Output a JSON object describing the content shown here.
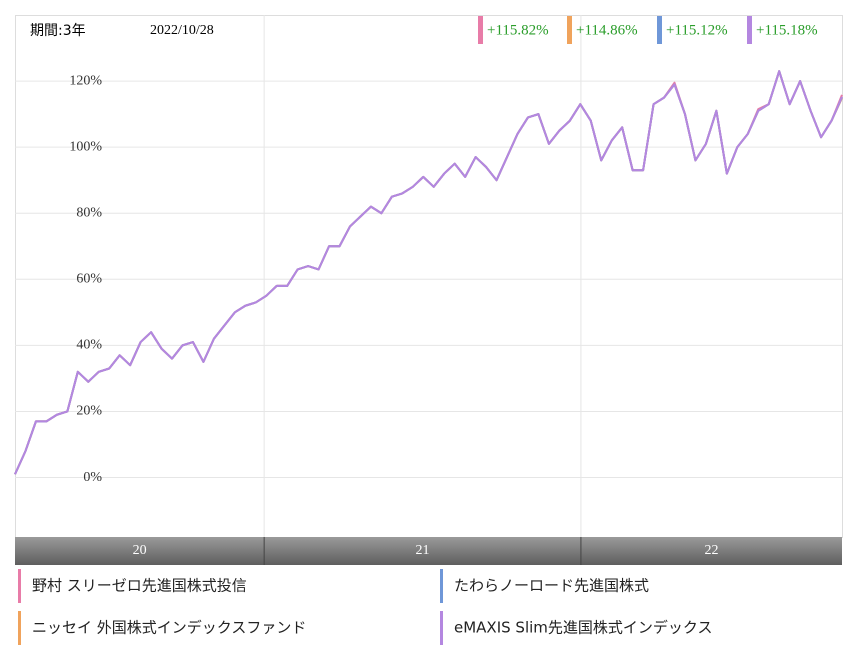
{
  "chart_data": {
    "type": "line",
    "period_label": "期間:3年",
    "date": "2022/10/28",
    "xlim": [
      0,
      79
    ],
    "year_bands": [
      {
        "label": "20",
        "start": 0,
        "end": 23.8
      },
      {
        "label": "21",
        "start": 23.8,
        "end": 54.06
      },
      {
        "label": "22",
        "start": 54.06,
        "end": 79
      }
    ],
    "ylim": [
      -18,
      140
    ],
    "yticks": [
      {
        "value": 0,
        "label": "0%"
      },
      {
        "value": 20,
        "label": "20%"
      },
      {
        "value": 40,
        "label": "40%"
      },
      {
        "value": 60,
        "label": "60%"
      },
      {
        "value": 80,
        "label": "80%"
      },
      {
        "value": 100,
        "label": "100%"
      },
      {
        "value": 120,
        "label": "120%"
      }
    ],
    "grid": true,
    "series": [
      {
        "name": "野村 スリーゼロ先進国株式投信",
        "color": "#e87ca8",
        "end_label": "+115.82%",
        "values": [
          1,
          8,
          17,
          17,
          19,
          20,
          32,
          29,
          32,
          33,
          37,
          34,
          41,
          44,
          39,
          36,
          40,
          41,
          35,
          42,
          46,
          50,
          52,
          53,
          55,
          58,
          58,
          63,
          64,
          63,
          70,
          70,
          76,
          79,
          82,
          80,
          85,
          86,
          88,
          91,
          88,
          92,
          95,
          91,
          97,
          94,
          90,
          97,
          104,
          109,
          110,
          101,
          105,
          108,
          113,
          108,
          96,
          102,
          106,
          93,
          93,
          113,
          115,
          119.5,
          110,
          96,
          101,
          111,
          92,
          100,
          104,
          111.5,
          113,
          123,
          113,
          120,
          111,
          103,
          108,
          115.82
        ]
      },
      {
        "name": "ニッセイ 外国株式インデックスファンド",
        "color": "#f0a35c",
        "end_label": "+114.86%",
        "values": [
          1,
          8,
          17,
          17,
          19,
          20,
          32,
          29,
          32,
          33,
          37,
          34,
          41,
          44,
          39,
          36,
          40,
          41,
          35,
          42,
          46,
          50,
          52,
          53,
          55,
          58,
          58,
          63,
          64,
          63,
          70,
          70,
          76,
          79,
          82,
          80,
          85,
          86,
          88,
          91,
          88,
          92,
          95,
          91,
          97,
          94,
          90,
          97,
          104,
          109,
          110,
          101,
          105,
          108,
          113,
          108,
          96,
          102,
          106,
          93,
          93,
          113,
          115,
          119,
          110,
          96,
          101,
          111,
          92,
          100,
          104,
          111,
          113,
          123,
          113,
          120,
          111,
          103,
          108,
          114.86
        ]
      },
      {
        "name": "たわらノーロード先進国株式",
        "color": "#6f97d8",
        "end_label": "+115.12%",
        "values": [
          1,
          8,
          17,
          17,
          19,
          20,
          32,
          29,
          32,
          33,
          37,
          34,
          41,
          44,
          39,
          36,
          40,
          41,
          35,
          42,
          46,
          50,
          52,
          53,
          55,
          58,
          58,
          63,
          64,
          63,
          70,
          70,
          76,
          79,
          82,
          80,
          85,
          86,
          88,
          91,
          88,
          92,
          95,
          91,
          97,
          94,
          90,
          97,
          104,
          109,
          110,
          101,
          105,
          108,
          113,
          108,
          96,
          102,
          106,
          93,
          93,
          113,
          115,
          119,
          110,
          96,
          101,
          111,
          92,
          100,
          104,
          111,
          113,
          123,
          113,
          120,
          111,
          103,
          108,
          115.12
        ]
      },
      {
        "name": "eMAXIS Slim先進国株式インデックス",
        "color": "#b487e0",
        "end_label": "+115.18%",
        "values": [
          1,
          8,
          17,
          17,
          19,
          20,
          32,
          29,
          32,
          33,
          37,
          34,
          41,
          44,
          39,
          36,
          40,
          41,
          35,
          42,
          46,
          50,
          52,
          53,
          55,
          58,
          58,
          63,
          64,
          63,
          70,
          70,
          76,
          79,
          82,
          80,
          85,
          86,
          88,
          91,
          88,
          92,
          95,
          91,
          97,
          94,
          90,
          97,
          104,
          109,
          110,
          101,
          105,
          108,
          113,
          108,
          96,
          102,
          106,
          93,
          93,
          113,
          115,
          119,
          110,
          96,
          101,
          111,
          92,
          100,
          104,
          111,
          113,
          123,
          113,
          120,
          111,
          103,
          108,
          115.18
        ]
      }
    ]
  }
}
